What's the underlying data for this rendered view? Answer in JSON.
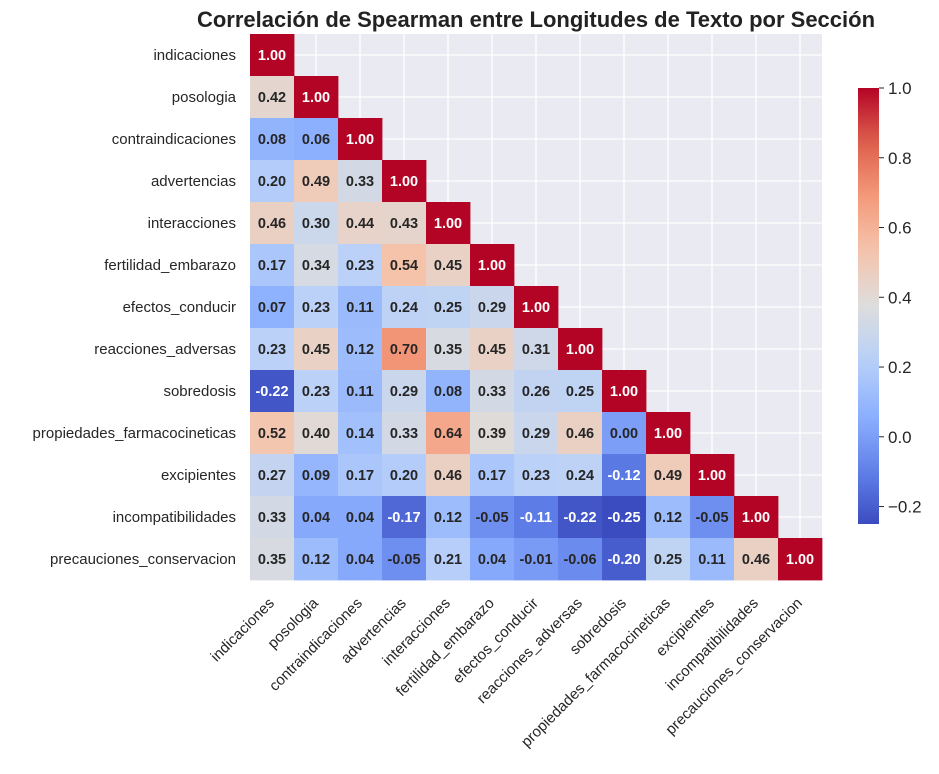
{
  "chart_data": {
    "type": "heatmap",
    "title": "Correlación de Spearman entre Longitudes de Texto por Sección",
    "labels": [
      "indicaciones",
      "posologia",
      "contraindicaciones",
      "advertencias",
      "interacciones",
      "fertilidad_embarazo",
      "efectos_conducir",
      "reacciones_adversas",
      "sobredosis",
      "propiedades_farmacocineticas",
      "excipientes",
      "incompatibilidades",
      "precauciones_conservacion"
    ],
    "values": [
      [
        "1.00"
      ],
      [
        "0.42",
        "1.00"
      ],
      [
        "0.08",
        "0.06",
        "1.00"
      ],
      [
        "0.20",
        "0.49",
        "0.33",
        "1.00"
      ],
      [
        "0.46",
        "0.30",
        "0.44",
        "0.43",
        "1.00"
      ],
      [
        "0.17",
        "0.34",
        "0.23",
        "0.54",
        "0.45",
        "1.00"
      ],
      [
        "0.07",
        "0.23",
        "0.11",
        "0.24",
        "0.25",
        "0.29",
        "1.00"
      ],
      [
        "0.23",
        "0.45",
        "0.12",
        "0.70",
        "0.35",
        "0.45",
        "0.31",
        "1.00"
      ],
      [
        "-0.22",
        "0.23",
        "0.11",
        "0.29",
        "0.08",
        "0.33",
        "0.26",
        "0.25",
        "1.00"
      ],
      [
        "0.52",
        "0.40",
        "0.14",
        "0.33",
        "0.64",
        "0.39",
        "0.29",
        "0.46",
        "0.00",
        "1.00"
      ],
      [
        "0.27",
        "0.09",
        "0.17",
        "0.20",
        "0.46",
        "0.17",
        "0.23",
        "0.24",
        "-0.12",
        "0.49",
        "1.00"
      ],
      [
        "0.33",
        "0.04",
        "0.04",
        "-0.17",
        "0.12",
        "-0.05",
        "-0.11",
        "-0.22",
        "-0.25",
        "0.12",
        "-0.05",
        "1.00"
      ],
      [
        "0.35",
        "0.12",
        "0.04",
        "-0.05",
        "0.21",
        "0.04",
        "-0.01",
        "-0.06",
        "-0.20",
        "0.25",
        "0.11",
        "0.46",
        "1.00"
      ]
    ],
    "colormap": "coolwarm",
    "colorbar": {
      "range": [
        -0.25,
        1.0
      ],
      "ticks": [
        "−0.2",
        "0.0",
        "0.2",
        "0.4",
        "0.6",
        "0.8",
        "1.0"
      ],
      "tick_values": [
        -0.2,
        0.0,
        0.2,
        0.4,
        0.6,
        0.8,
        1.0
      ]
    },
    "mask": "upper-triangle",
    "grid": true,
    "background_color": "#eaeaf2"
  }
}
